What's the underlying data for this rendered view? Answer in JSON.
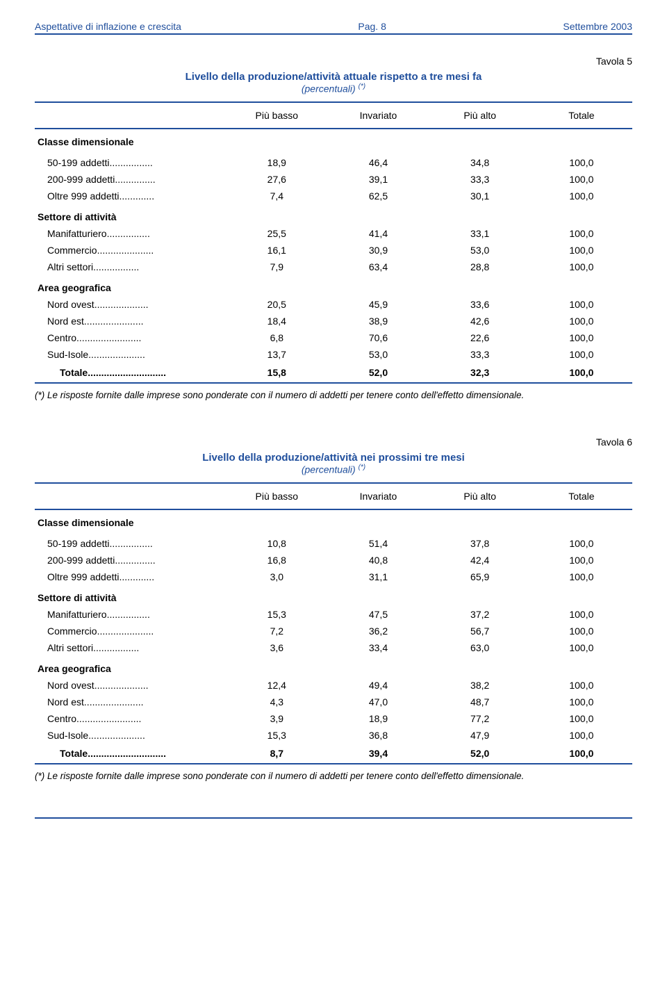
{
  "header": {
    "left": "Aspettative di inflazione e crescita",
    "center": "Pag. 8",
    "right": "Settembre 2003"
  },
  "colors": {
    "accent": "#1f4e9c",
    "text": "#000000",
    "bg": "#ffffff"
  },
  "fonts": {
    "body_family": "Verdana, Arial, sans-serif",
    "body_size_pt": 11,
    "title_size_pt": 12
  },
  "table5": {
    "tavola_label": "Tavola 5",
    "title": "Livello della produzione/attività attuale rispetto a tre mesi fa",
    "subtitle_html": "(<i>percentuali</i>) <sup>(*)</sup>",
    "columns": [
      "Più basso",
      "Invariato",
      "Più alto",
      "Totale"
    ],
    "sections": [
      {
        "label": "Classe dimensionale",
        "rows": [
          {
            "label": "50-199 addetti",
            "vals": [
              "18,9",
              "46,4",
              "34,8",
              "100,0"
            ]
          },
          {
            "label": "200-999 addetti",
            "vals": [
              "27,6",
              "39,1",
              "33,3",
              "100,0"
            ]
          },
          {
            "label": "Oltre 999 addetti",
            "vals": [
              "7,4",
              "62,5",
              "30,1",
              "100,0"
            ]
          }
        ]
      },
      {
        "label": "Settore di attività",
        "rows": [
          {
            "label": "Manifatturiero",
            "vals": [
              "25,5",
              "41,4",
              "33,1",
              "100,0"
            ]
          },
          {
            "label": "Commercio",
            "vals": [
              "16,1",
              "30,9",
              "53,0",
              "100,0"
            ]
          },
          {
            "label": "Altri settori",
            "vals": [
              "7,9",
              "63,4",
              "28,8",
              "100,0"
            ]
          }
        ]
      },
      {
        "label": "Area geografica",
        "rows": [
          {
            "label": "Nord ovest",
            "vals": [
              "20,5",
              "45,9",
              "33,6",
              "100,0"
            ]
          },
          {
            "label": "Nord est",
            "vals": [
              "18,4",
              "38,9",
              "42,6",
              "100,0"
            ]
          },
          {
            "label": "Centro",
            "vals": [
              "6,8",
              "70,6",
              "22,6",
              "100,0"
            ]
          },
          {
            "label": "Sud-Isole",
            "vals": [
              "13,7",
              "53,0",
              "33,3",
              "100,0"
            ]
          }
        ]
      }
    ],
    "total": {
      "label": "Totale",
      "vals": [
        "15,8",
        "52,0",
        "32,3",
        "100,0"
      ]
    },
    "footnote": "(*) Le risposte fornite dalle imprese sono ponderate con il numero di addetti per tenere conto dell'effetto dimensionale."
  },
  "table6": {
    "tavola_label": "Tavola 6",
    "title": "Livello della produzione/attività nei prossimi tre mesi",
    "subtitle_html": "(<i>percentuali</i>) <sup>(*)</sup>",
    "columns": [
      "Più basso",
      "Invariato",
      "Più alto",
      "Totale"
    ],
    "sections": [
      {
        "label": "Classe dimensionale",
        "rows": [
          {
            "label": "50-199 addetti",
            "vals": [
              "10,8",
              "51,4",
              "37,8",
              "100,0"
            ]
          },
          {
            "label": "200-999 addetti",
            "vals": [
              "16,8",
              "40,8",
              "42,4",
              "100,0"
            ]
          },
          {
            "label": "Oltre 999 addetti",
            "vals": [
              "3,0",
              "31,1",
              "65,9",
              "100,0"
            ]
          }
        ]
      },
      {
        "label": "Settore di attività",
        "rows": [
          {
            "label": "Manifatturiero",
            "vals": [
              "15,3",
              "47,5",
              "37,2",
              "100,0"
            ]
          },
          {
            "label": "Commercio",
            "vals": [
              "7,2",
              "36,2",
              "56,7",
              "100,0"
            ]
          },
          {
            "label": "Altri settori",
            "vals": [
              "3,6",
              "33,4",
              "63,0",
              "100,0"
            ]
          }
        ]
      },
      {
        "label": "Area geografica",
        "rows": [
          {
            "label": "Nord ovest",
            "vals": [
              "12,4",
              "49,4",
              "38,2",
              "100,0"
            ]
          },
          {
            "label": "Nord est",
            "vals": [
              "4,3",
              "47,0",
              "48,7",
              "100,0"
            ]
          },
          {
            "label": "Centro",
            "vals": [
              "3,9",
              "18,9",
              "77,2",
              "100,0"
            ]
          },
          {
            "label": "Sud-Isole",
            "vals": [
              "15,3",
              "36,8",
              "47,9",
              "100,0"
            ]
          }
        ]
      }
    ],
    "total": {
      "label": "Totale",
      "vals": [
        "8,7",
        "39,4",
        "52,0",
        "100,0"
      ]
    },
    "footnote": "(*) Le risposte fornite dalle imprese sono ponderate con il numero di addetti per tenere conto dell'effetto dimensionale."
  },
  "dots": "............................."
}
